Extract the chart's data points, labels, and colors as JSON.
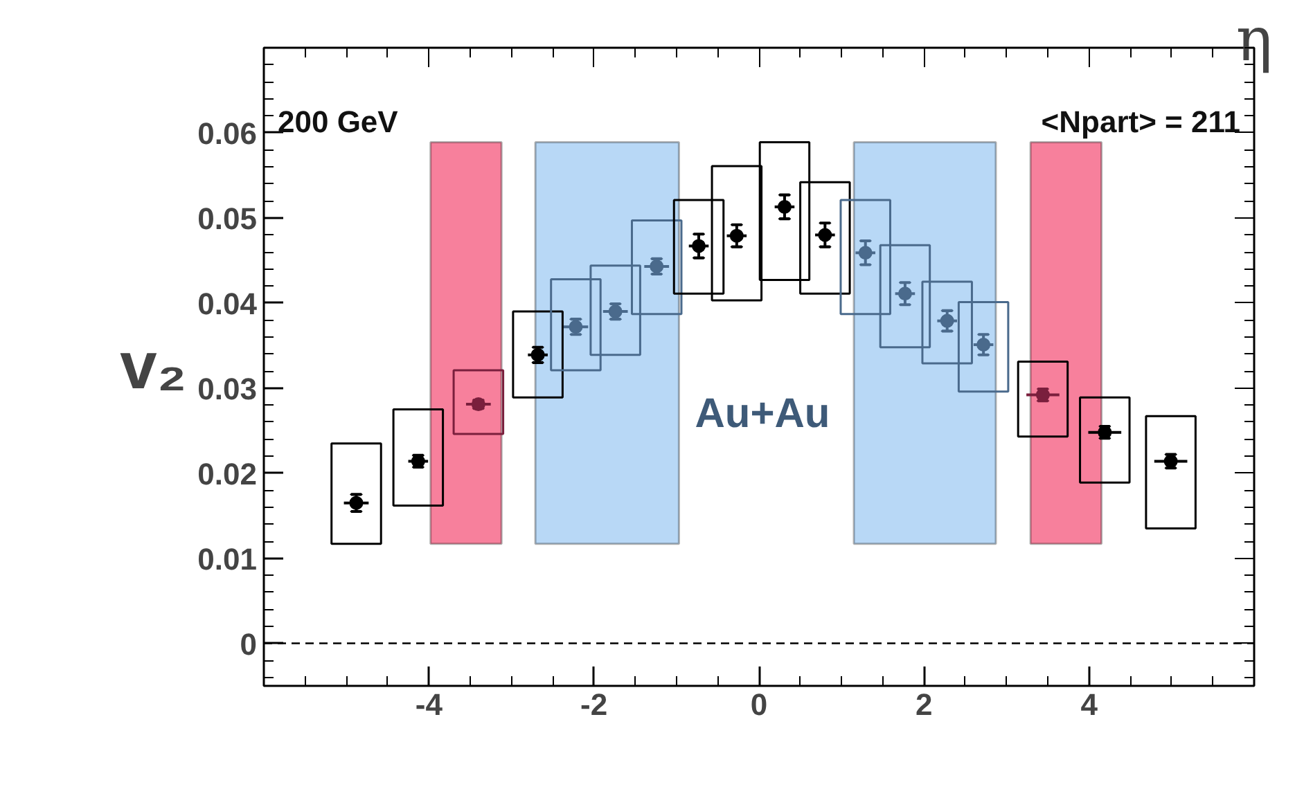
{
  "chart_data": {
    "type": "scatter",
    "xlabel": "η",
    "ylabel": "v₂",
    "annotations": [
      "200 GeV",
      "<Npart> = 211",
      "Au+Au"
    ],
    "xlim": [
      -6,
      6
    ],
    "ylim": [
      -0.005,
      0.07
    ],
    "xticks": [
      -4,
      -2,
      0,
      2,
      4
    ],
    "yticks": [
      0,
      0.01,
      0.02,
      0.03,
      0.04,
      0.05,
      0.06
    ],
    "grid": false,
    "marker": "circle",
    "ref_lines": [
      {
        "axis": "y",
        "value": 0,
        "line_style": "dashed",
        "color": "#000000"
      }
    ],
    "bands": [
      {
        "axis": "x",
        "from": -3.98,
        "to": -3.12,
        "color": "#f7809c"
      },
      {
        "axis": "x",
        "from": -2.71,
        "to": -0.97,
        "color": "#b8d8f6"
      },
      {
        "axis": "x",
        "from": 1.15,
        "to": 2.87,
        "color": "#b8d8f6"
      },
      {
        "axis": "x",
        "from": 3.29,
        "to": 4.15,
        "color": "#f7809c"
      }
    ],
    "series": [
      {
        "type": "bar",
        "x": [
          -4.88,
          -4.13,
          -3.4,
          -2.68,
          -2.22,
          -1.74,
          -1.24,
          -0.73,
          -0.27,
          0.31,
          0.8,
          1.29,
          1.77,
          2.28,
          2.72,
          3.44,
          4.19,
          4.99
        ],
        "base": [
          0.0117,
          0.0162,
          0.0246,
          0.0289,
          0.0321,
          0.0339,
          0.0387,
          0.0411,
          0.0403,
          0.0427,
          0.0411,
          0.0387,
          0.0348,
          0.0329,
          0.0296,
          0.0243,
          0.0189,
          0.0135
        ],
        "values": [
          0.0118,
          0.0113,
          0.0075,
          0.0101,
          0.0107,
          0.0105,
          0.011,
          0.011,
          0.0158,
          0.0162,
          0.0131,
          0.0134,
          0.012,
          0.0096,
          0.0105,
          0.0088,
          0.01,
          0.0132
        ],
        "colors": [
          "#000000",
          "#000000",
          "#7a1f3d",
          "#000000",
          "#4a6a8c",
          "#4a6a8c",
          "#4a6a8c",
          "#000000",
          "#000000",
          "#000000",
          "#000000",
          "#4a6a8c",
          "#4a6a8c",
          "#4a6a8c",
          "#4a6a8c",
          "#000000",
          "#000000",
          "#000000"
        ]
      },
      {
        "x": [
          -4.88,
          -4.13,
          -3.4,
          -2.68,
          -2.22,
          -1.74,
          -1.24,
          -0.73,
          -0.27,
          0.31,
          0.8,
          1.29,
          1.77,
          2.28,
          2.72,
          3.44,
          4.19,
          4.99
        ],
        "values": [
          0.0165,
          0.0214,
          0.0281,
          0.0339,
          0.0372,
          0.039,
          0.0443,
          0.0467,
          0.0479,
          0.0513,
          0.048,
          0.0459,
          0.0411,
          0.0379,
          0.0351,
          0.0292,
          0.0248,
          0.0214
        ],
        "errors": [
          0.001,
          0.0007,
          0.0005,
          0.0009,
          0.0009,
          0.0009,
          0.0009,
          0.0014,
          0.0013,
          0.0014,
          0.0014,
          0.0014,
          0.0013,
          0.0012,
          0.0012,
          0.0007,
          0.0007,
          0.0008
        ],
        "xerrors": [
          0.15,
          0.12,
          0.15,
          0.12,
          0.15,
          0.15,
          0.15,
          0.12,
          0.12,
          0.12,
          0.12,
          0.12,
          0.12,
          0.12,
          0.12,
          0.2,
          0.2,
          0.2
        ],
        "colors": [
          "#000000",
          "#000000",
          "#7a1f3d",
          "#000000",
          "#4a6a8c",
          "#4a6a8c",
          "#4a6a8c",
          "#000000",
          "#000000",
          "#000000",
          "#000000",
          "#4a6a8c",
          "#4a6a8c",
          "#4a6a8c",
          "#4a6a8c",
          "#7a1f3d",
          "#000000",
          "#000000"
        ]
      }
    ]
  }
}
